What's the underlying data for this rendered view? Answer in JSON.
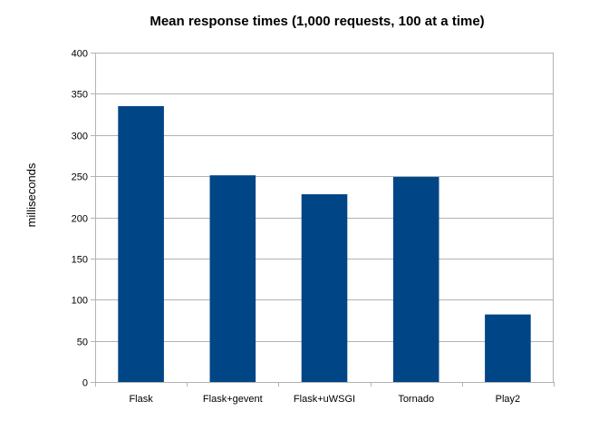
{
  "chart_data": {
    "type": "bar",
    "title": "Mean response times (1,000 requests, 100 at a time)",
    "xlabel": "",
    "ylabel": "milliseconds",
    "categories": [
      "Flask",
      "Flask+gevent",
      "Flask+uWSGI",
      "Tornado",
      "Play2"
    ],
    "series": [
      {
        "values": [
          335,
          251,
          228,
          249,
          82
        ]
      }
    ],
    "ylim": [
      0,
      400
    ],
    "yticks": [
      0,
      50,
      100,
      150,
      200,
      250,
      300,
      350,
      400
    ],
    "grid": true,
    "legend": "none",
    "colors": {
      "bar": "#004586",
      "grid": "#b3b3b3",
      "axis": "#b3b3b3"
    }
  }
}
